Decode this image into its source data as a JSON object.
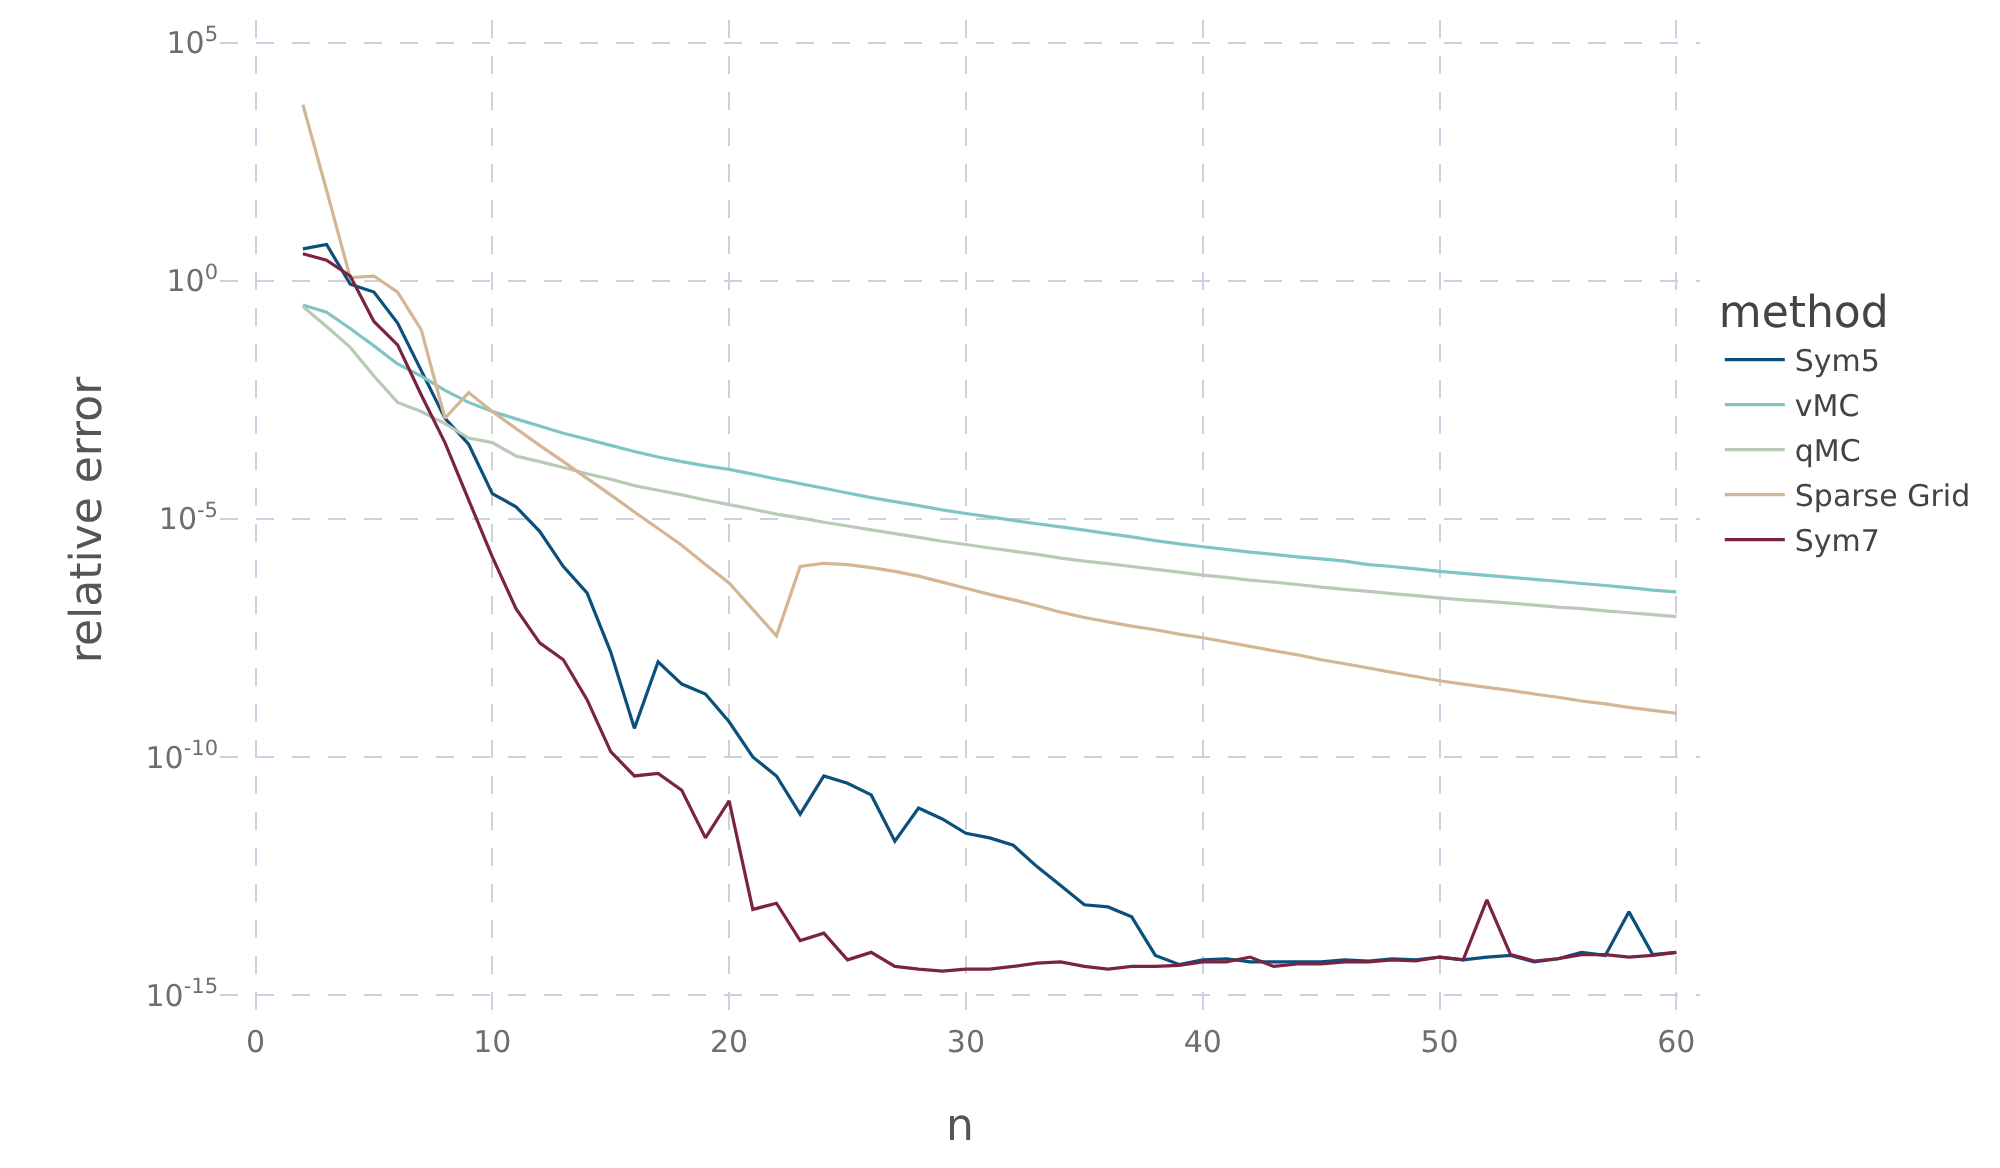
{
  "chart_data": {
    "type": "line",
    "xlabel": "n",
    "ylabel": "relative error",
    "legend_title": "method",
    "legend": "right",
    "grid": true,
    "log": "y",
    "line_style": "solid",
    "xlim": [
      -1.5,
      61
    ],
    "xticks": [
      0,
      10,
      20,
      30,
      40,
      50,
      60
    ],
    "ylim": [
      3e-16,
      300000.0
    ],
    "yticks": [
      {
        "value": 1e-15,
        "label": "10$^{-15}$"
      },
      {
        "value": 1e-10,
        "label": "10$^{-10}$"
      },
      {
        "value": 1e-05,
        "label": "10$^{-5}$"
      },
      {
        "value": 1,
        "label": "10$^{0}$"
      },
      {
        "value": 100000.0,
        "label": "10$^{5}$"
      }
    ],
    "x": [
      2,
      3,
      4,
      5,
      6,
      7,
      8,
      9,
      10,
      11,
      12,
      13,
      14,
      15,
      16,
      17,
      18,
      19,
      20,
      21,
      22,
      23,
      24,
      25,
      26,
      27,
      28,
      29,
      30,
      31,
      32,
      33,
      34,
      35,
      36,
      37,
      38,
      39,
      40,
      41,
      42,
      43,
      44,
      45,
      46,
      47,
      48,
      49,
      50,
      51,
      52,
      53,
      54,
      55,
      56,
      57,
      58,
      59,
      60
    ],
    "series": [
      {
        "name": "Sym5",
        "color": "#0b4f7c",
        "values": [
          4.7,
          5.8,
          0.85,
          0.58,
          0.13,
          0.013,
          0.0013,
          0.00037,
          3.4e-05,
          1.8e-05,
          5.5e-06,
          1e-06,
          2.8e-07,
          1.6e-08,
          4e-10,
          1e-08,
          3.4e-09,
          2.1e-09,
          5.5e-10,
          1e-10,
          4e-11,
          6.3e-12,
          4e-11,
          2.8e-11,
          1.6e-11,
          1.7e-12,
          8.5e-12,
          5e-12,
          2.5e-12,
          2e-12,
          1.4e-12,
          5e-13,
          2e-13,
          7.9e-14,
          7.1e-14,
          4.4e-14,
          6.8e-15,
          4.4e-15,
          5.5e-15,
          5.8e-15,
          5e-15,
          5e-15,
          5e-15,
          5e-15,
          5.5e-15,
          5.2e-15,
          5.8e-15,
          5.5e-15,
          6.3e-15,
          5.5e-15,
          6.3e-15,
          6.8e-15,
          5e-15,
          5.8e-15,
          7.9e-15,
          6.8e-15,
          5.6e-14,
          7.1e-15,
          7.9e-15
        ]
      },
      {
        "name": "vMC",
        "color": "#80c4c4",
        "values": [
          0.31,
          0.22,
          0.1,
          0.043,
          0.018,
          0.01,
          0.005,
          0.0028,
          0.0018,
          0.00126,
          0.00089,
          0.00063,
          0.00047,
          0.00035,
          0.00026,
          0.0002,
          0.00016,
          0.00013,
          0.00011,
          8.7e-05,
          6.9e-05,
          5.5e-05,
          4.4e-05,
          3.5e-05,
          2.8e-05,
          2.3e-05,
          1.9e-05,
          1.55e-05,
          1.3e-05,
          1.1e-05,
          9.3e-06,
          7.9e-06,
          6.8e-06,
          5.8e-06,
          4.9e-06,
          4.2e-06,
          3.5e-06,
          3e-06,
          2.6e-06,
          2.3e-06,
          2e-06,
          1.8e-06,
          1.6e-06,
          1.45e-06,
          1.3e-06,
          1.1e-06,
          1e-06,
          8.9e-07,
          7.9e-07,
          7.2e-07,
          6.5e-07,
          5.9e-07,
          5.4e-07,
          4.9e-07,
          4.4e-07,
          4e-07,
          3.6e-07,
          3.2e-07,
          2.95e-07
        ]
      },
      {
        "name": "qMC",
        "color": "#b9cab6",
        "values": [
          0.29,
          0.11,
          0.04,
          0.01,
          0.0028,
          0.0018,
          0.001,
          0.0005,
          0.0004,
          0.00021,
          0.00016,
          0.00012,
          8.9e-05,
          6.8e-05,
          5e-05,
          4e-05,
          3.2e-05,
          2.5e-05,
          2e-05,
          1.6e-05,
          1.26e-05,
          1.05e-05,
          8.5e-06,
          7.1e-06,
          5.9e-06,
          4.9e-06,
          4.1e-06,
          3.4e-06,
          2.9e-06,
          2.45e-06,
          2.1e-06,
          1.8e-06,
          1.5e-06,
          1.3e-06,
          1.15e-06,
          1e-06,
          8.7e-07,
          7.6e-07,
          6.6e-07,
          5.9e-07,
          5.2e-07,
          4.7e-07,
          4.2e-07,
          3.7e-07,
          3.3e-07,
          3e-07,
          2.7e-07,
          2.45e-07,
          2.2e-07,
          2e-07,
          1.86e-07,
          1.7e-07,
          1.55e-07,
          1.4e-07,
          1.3e-07,
          1.17e-07,
          1.07e-07,
          9.8e-08,
          8.9e-08
        ]
      },
      {
        "name": "Sparse Grid",
        "color": "#d4b594",
        "values": [
          5000,
          80,
          1.17,
          1.26,
          0.58,
          0.093,
          0.0013,
          0.0045,
          0.0018,
          0.00079,
          0.00035,
          0.00016,
          7.1e-05,
          3.2e-05,
          1.4e-05,
          6.3e-06,
          2.8e-06,
          1.1e-06,
          4.5e-07,
          1.26e-07,
          3.5e-08,
          1e-06,
          1.17e-06,
          1.1e-06,
          9.5e-07,
          7.9e-07,
          6.3e-07,
          4.7e-07,
          3.5e-07,
          2.6e-07,
          2e-07,
          1.5e-07,
          1.1e-07,
          8.5e-08,
          6.9e-08,
          5.6e-08,
          4.7e-08,
          3.8e-08,
          3.2e-08,
          2.6e-08,
          2.1e-08,
          1.7e-08,
          1.4e-08,
          1.1e-08,
          9.1e-09,
          7.4e-09,
          6e-09,
          4.9e-09,
          4e-09,
          3.4e-09,
          2.9e-09,
          2.5e-09,
          2.1e-09,
          1.8e-09,
          1.5e-09,
          1.3e-09,
          1.1e-09,
          9.5e-10,
          8.3e-10
        ]
      },
      {
        "name": "Sym7",
        "color": "#7b2342",
        "values": [
          3.7,
          2.7,
          1.26,
          0.14,
          0.045,
          0.004,
          0.0004,
          2.5e-05,
          1.6e-06,
          1.3e-07,
          2.5e-08,
          1.1e-08,
          1.6e-09,
          1.3e-10,
          4e-11,
          4.5e-11,
          2e-11,
          2e-12,
          1.2e-11,
          6.3e-14,
          8.5e-14,
          1.4e-14,
          2e-14,
          5.5e-15,
          7.9e-15,
          4e-15,
          3.5e-15,
          3.2e-15,
          3.5e-15,
          3.5e-15,
          4e-15,
          4.7e-15,
          5e-15,
          4e-15,
          3.5e-15,
          4e-15,
          4e-15,
          4.2e-15,
          5e-15,
          5e-15,
          6.3e-15,
          4e-15,
          4.5e-15,
          4.5e-15,
          5e-15,
          5e-15,
          5.5e-15,
          5.2e-15,
          6.3e-15,
          5.5e-15,
          1e-13,
          7.1e-15,
          5.2e-15,
          5.8e-15,
          7.1e-15,
          7.1e-15,
          6.3e-15,
          6.8e-15,
          7.9e-15
        ]
      }
    ]
  }
}
